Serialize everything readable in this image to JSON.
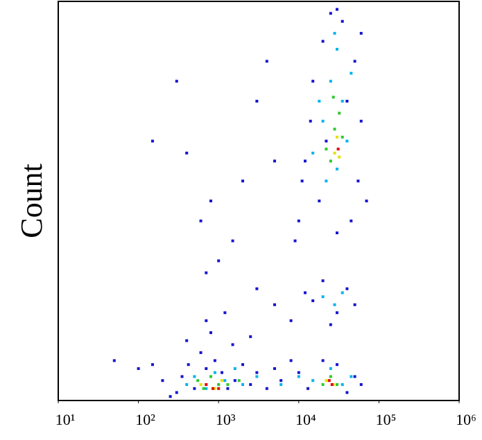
{
  "chart_data": {
    "type": "scatter",
    "y_label": "Count",
    "xscale": "log",
    "xlim": [
      10,
      1000000
    ],
    "ylim": [
      0,
      100
    ],
    "xticks": [
      {
        "value": 10,
        "label": "10¹"
      },
      {
        "value": 100,
        "label": "10²"
      },
      {
        "value": 1000,
        "label": "10³"
      },
      {
        "value": 10000,
        "label": "10⁴"
      },
      {
        "value": 100000,
        "label": "10⁵"
      },
      {
        "value": 1000000,
        "label": "10⁶"
      }
    ],
    "series": [
      {
        "color": "#1414d2",
        "x": [
          300,
          350,
          420,
          500,
          600,
          700,
          900,
          1100,
          1300,
          1600,
          2000,
          2500,
          3000,
          4000,
          5000,
          6000,
          8000,
          10000,
          13000,
          20000,
          30000,
          40000,
          50000,
          60000,
          250,
          200,
          150,
          400,
          800,
          1500,
          2500,
          700,
          1200,
          15000,
          20000,
          30000,
          40000,
          25000,
          50000,
          5000,
          3000,
          8000,
          12000,
          10000,
          12000,
          15000,
          20000,
          25000,
          35000,
          50000,
          60000,
          55000,
          45000,
          30000,
          18000,
          14000,
          11000,
          60000,
          40000,
          22000,
          9000,
          70000,
          30000,
          2000,
          1000,
          600,
          300,
          150,
          3000,
          5000,
          700,
          1500,
          100,
          50,
          4000,
          400,
          800
        ],
        "values": [
          2,
          6,
          9,
          3,
          12,
          8,
          10,
          7,
          3,
          5,
          9,
          4,
          7,
          3,
          8,
          5,
          10,
          7,
          3,
          10,
          9,
          2,
          6,
          4,
          1,
          5,
          9,
          15,
          17,
          14,
          16,
          20,
          22,
          25,
          30,
          22,
          28,
          19,
          24,
          24,
          28,
          20,
          27,
          45,
          60,
          80,
          90,
          97,
          95,
          85,
          70,
          55,
          45,
          42,
          50,
          70,
          55,
          92,
          75,
          65,
          40,
          50,
          98,
          55,
          35,
          45,
          80,
          65,
          75,
          60,
          32,
          40,
          8,
          10,
          85,
          62,
          50
        ]
      },
      {
        "color": "#00b4f0",
        "x": [
          500,
          700,
          900,
          1200,
          1600,
          2000,
          3000,
          6000,
          10000,
          15000,
          25000,
          35000,
          45000,
          400,
          20000,
          28000,
          35000,
          15000,
          20000,
          25000,
          30000,
          35000,
          40000,
          22000,
          18000,
          30000,
          45000,
          28000
        ],
        "values": [
          6,
          3,
          7,
          5,
          8,
          4,
          6,
          4,
          6,
          5,
          8,
          4,
          6,
          4,
          26,
          24,
          27,
          62,
          70,
          80,
          88,
          75,
          65,
          55,
          75,
          58,
          82,
          92
        ]
      },
      {
        "color": "#2ec82e",
        "x": [
          550,
          650,
          800,
          1000,
          1300,
          1800,
          20000,
          25000,
          30000,
          22000,
          28000,
          32000,
          25000,
          35000,
          27000
        ],
        "values": [
          5,
          3,
          6,
          4,
          4,
          5,
          4,
          6,
          4,
          63,
          68,
          72,
          60,
          66,
          76
        ]
      },
      {
        "color": "#e2e200",
        "x": [
          600,
          900,
          1100,
          22000,
          27000,
          28000,
          30000,
          32000
        ],
        "values": [
          4,
          3,
          5,
          5,
          4,
          62,
          66,
          61
        ]
      },
      {
        "color": "#e60000",
        "x": [
          700,
          850,
          1000,
          24000,
          26000,
          31000
        ],
        "values": [
          4,
          3,
          3,
          5,
          4,
          63
        ]
      }
    ]
  }
}
